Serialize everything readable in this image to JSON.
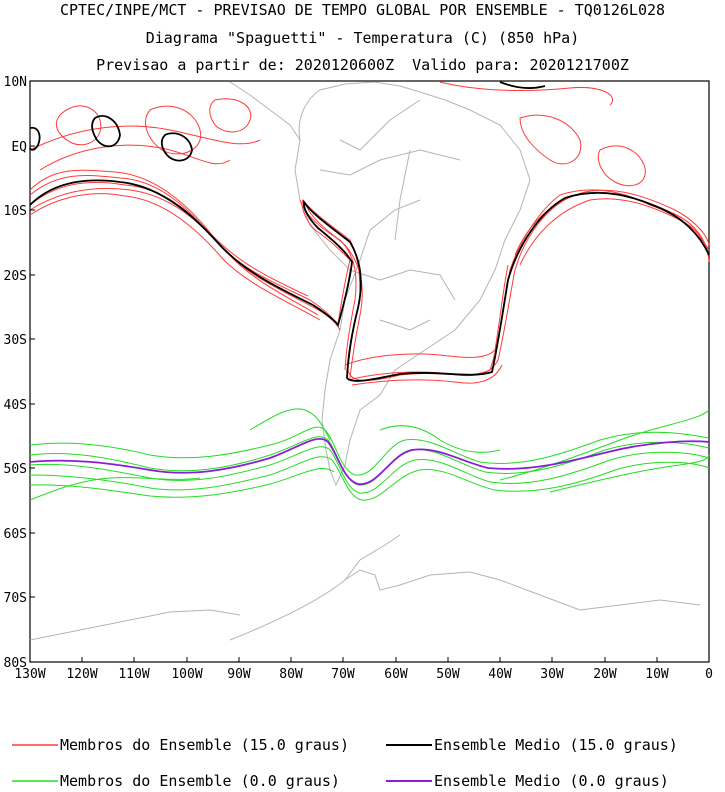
{
  "title": {
    "line1": "CPTEC/INPE/MCT - PREVISAO DE TEMPO GLOBAL POR ENSEMBLE - TQ0126L028",
    "line2": "Diagrama \"Spaguetti\" - Temperatura (C) (850 hPa)",
    "line3": "Previsao a partir de: 2020120600Z  Valido para: 2020121700Z"
  },
  "axes": {
    "lat_labels": [
      "10N",
      "EQ",
      "10S",
      "20S",
      "30S",
      "40S",
      "50S",
      "60S",
      "70S",
      "80S"
    ],
    "lon_labels": [
      "130W",
      "120W",
      "110W",
      "100W",
      "90W",
      "80W",
      "70W",
      "60W",
      "50W",
      "40W",
      "30W",
      "20W",
      "10W",
      "0"
    ]
  },
  "legend": {
    "items": [
      {
        "label": "Membros do Ensemble (15.0 graus)",
        "color": "#ff3b3b"
      },
      {
        "label": "Ensemble Medio (15.0 graus)",
        "color": "#000000"
      },
      {
        "label": "Membros do Ensemble (0.0 graus)",
        "color": "#22dd22"
      },
      {
        "label": "Ensemble Medio (0.0 graus)",
        "color": "#8a1ed8"
      }
    ]
  },
  "colors": {
    "member_15": "#ff3b3b",
    "mean_15": "#000000",
    "member_0": "#22dd22",
    "mean_0": "#8a1ed8",
    "coastline": "#b4b4b4"
  }
}
